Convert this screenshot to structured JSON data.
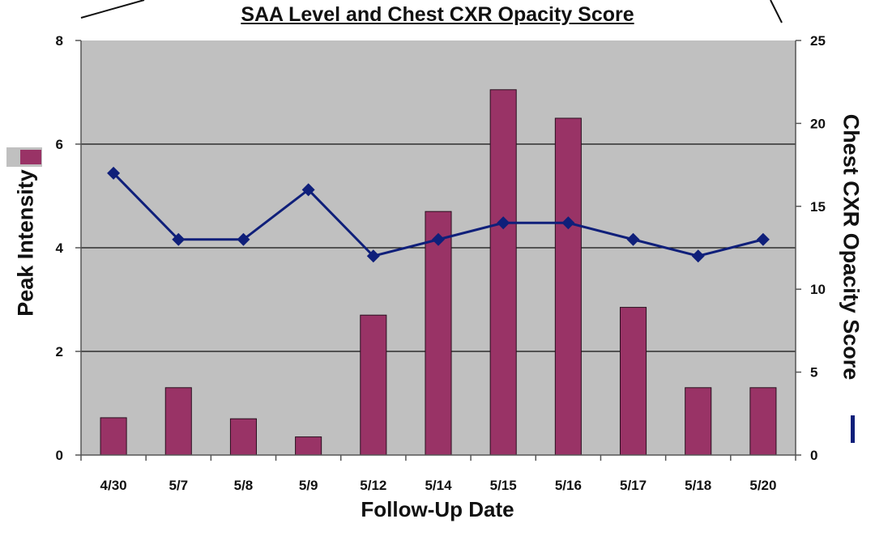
{
  "chart_data": {
    "type": "bar",
    "title": "SAA Level and Chest CXR Opacity Score",
    "xlabel": "Follow-Up Date",
    "ylabel": "Peak Intensity",
    "y2label": "Chest CXR Opacity Score",
    "categories": [
      "4/30",
      "5/7",
      "5/8",
      "5/9",
      "5/12",
      "5/14",
      "5/15",
      "5/16",
      "5/17",
      "5/18",
      "5/20"
    ],
    "series": [
      {
        "type": "bar",
        "axis": "left",
        "color": "#993366",
        "values": [
          0.72,
          1.3,
          0.7,
          0.35,
          2.7,
          4.7,
          7.05,
          6.5,
          2.85,
          1.3,
          1.3
        ]
      },
      {
        "type": "line",
        "axis": "right",
        "color": "#0f1f7a",
        "marker": "diamond",
        "values": [
          17,
          13,
          13,
          16,
          12,
          13,
          14,
          14,
          13,
          12,
          13
        ]
      }
    ],
    "ylim": [
      0,
      8
    ],
    "y2lim": [
      0,
      25
    ],
    "yticks": [
      "0",
      "2",
      "4",
      "6",
      "8"
    ],
    "y2ticks": [
      "0",
      "5",
      "10",
      "15",
      "20",
      "25"
    ],
    "grid": true,
    "plot_background": "#c0c0c0"
  }
}
